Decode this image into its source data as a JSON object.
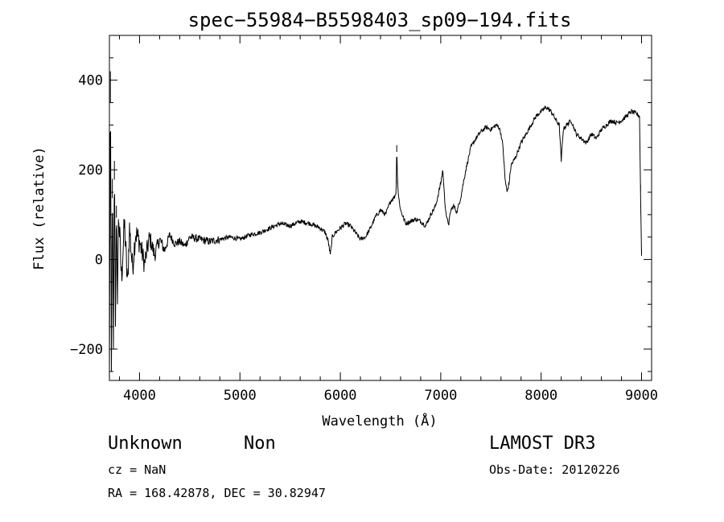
{
  "chart_data": {
    "type": "line",
    "title": "spec−55984−B5598403_sp09−194.fits",
    "xlabel": "Wavelength (Å)",
    "ylabel": "Flux (relative)",
    "xlim": [
      3700,
      9100
    ],
    "ylim": [
      -270,
      500
    ],
    "xticks": [
      4000,
      5000,
      6000,
      7000,
      8000,
      9000
    ],
    "yticks": [
      -200,
      0,
      200,
      400
    ],
    "ytick_labels": [
      "−200",
      "0",
      "200",
      "400"
    ],
    "series": [
      {
        "x": [
          3700,
          3710,
          3720,
          3730,
          3740,
          3750,
          3760,
          3770,
          3780,
          3790,
          3800,
          3820,
          3850,
          3880,
          3900,
          3930,
          3960,
          4000,
          4050,
          4100,
          4150,
          4200,
          4250,
          4300,
          4350,
          4400,
          4450,
          4500,
          4600,
          4700,
          4800,
          4900,
          5000,
          5100,
          5200,
          5300,
          5400,
          5500,
          5600,
          5700,
          5800,
          5850,
          5880,
          5900,
          5920,
          5950,
          6000,
          6050,
          6100,
          6150,
          6200,
          6250,
          6300,
          6350,
          6400,
          6450,
          6500,
          6540,
          6555,
          6562,
          6570,
          6580,
          6600,
          6650,
          6700,
          6750,
          6800,
          6850,
          6900,
          6950,
          7000,
          7020,
          7040,
          7060,
          7080,
          7100,
          7130,
          7160,
          7200,
          7250,
          7300,
          7350,
          7400,
          7450,
          7500,
          7550,
          7580,
          7600,
          7620,
          7640,
          7660,
          7680,
          7700,
          7750,
          7800,
          7850,
          7900,
          7950,
          8000,
          8050,
          8100,
          8150,
          8180,
          8200,
          8220,
          8250,
          8300,
          8350,
          8400,
          8450,
          8500,
          8550,
          8600,
          8650,
          8700,
          8750,
          8800,
          8850,
          8900,
          8950,
          8980,
          8990,
          9000
        ],
        "y": [
          -270,
          420,
          -250,
          180,
          -200,
          220,
          -150,
          120,
          -100,
          90,
          60,
          -40,
          80,
          -60,
          70,
          -20,
          60,
          40,
          -10,
          50,
          10,
          45,
          20,
          55,
          35,
          40,
          30,
          50,
          45,
          40,
          45,
          50,
          45,
          55,
          60,
          70,
          80,
          75,
          85,
          80,
          70,
          60,
          40,
          10,
          50,
          60,
          70,
          80,
          75,
          60,
          45,
          50,
          70,
          95,
          110,
          100,
          130,
          140,
          150,
          255,
          170,
          140,
          110,
          80,
          85,
          90,
          85,
          75,
          100,
          120,
          170,
          200,
          130,
          90,
          80,
          110,
          120,
          105,
          140,
          200,
          250,
          270,
          285,
          295,
          290,
          300,
          295,
          280,
          250,
          180,
          150,
          170,
          210,
          230,
          260,
          280,
          300,
          320,
          330,
          340,
          330,
          310,
          300,
          220,
          290,
          300,
          310,
          280,
          270,
          260,
          280,
          270,
          290,
          300,
          310,
          305,
          310,
          320,
          330,
          325,
          320,
          150,
          10
        ]
      }
    ]
  },
  "footer": {
    "object_class": "Unknown",
    "object_subclass": "Non",
    "survey": "LAMOST DR3",
    "redshift": "cz = NaN",
    "obs_date": "Obs-Date: 20120226",
    "coords": "RA = 168.42878, DEC =  30.82947"
  }
}
